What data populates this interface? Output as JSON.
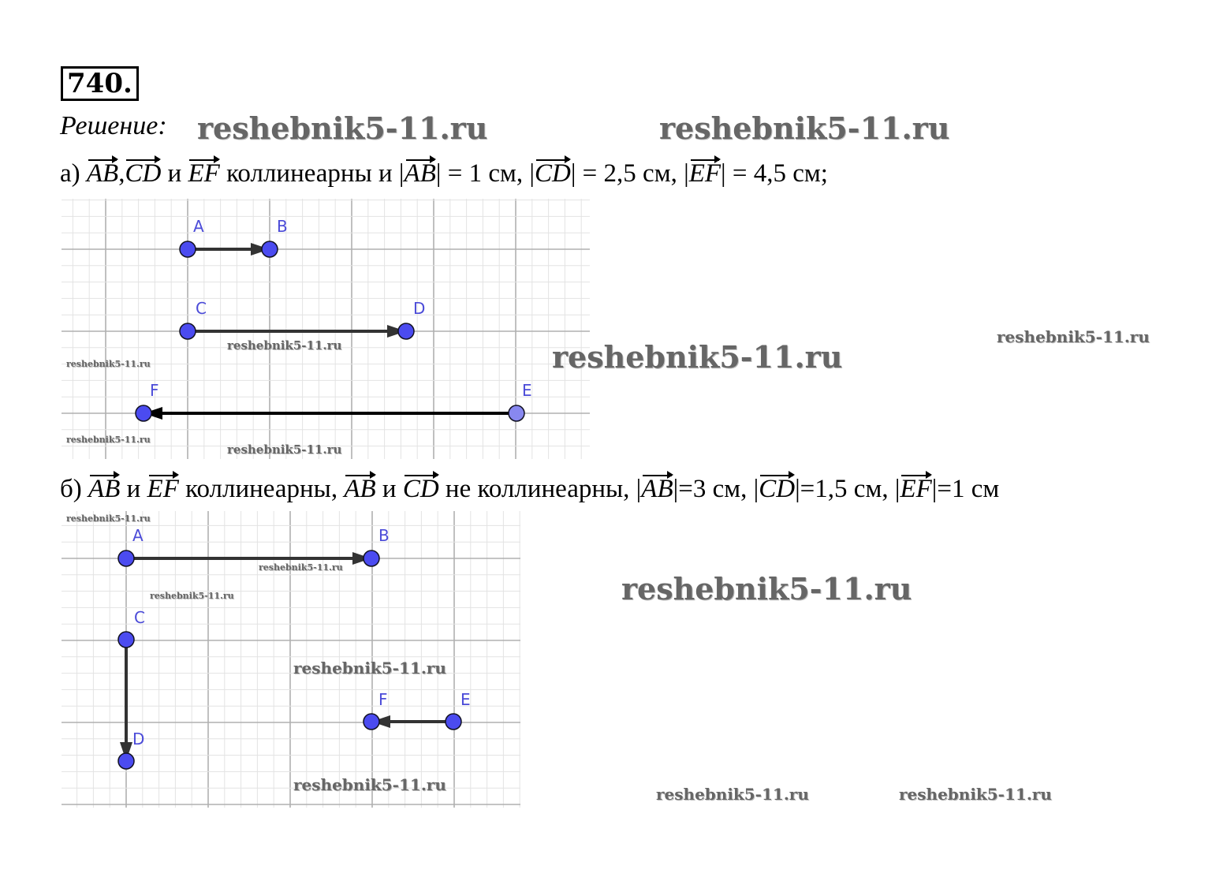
{
  "problem_number": "740.",
  "solution_label": "Решение:",
  "part_a": {
    "prefix": "а)",
    "v1": "AB",
    "sep1": ",",
    "v2": "CD",
    "and": "и",
    "v3": "EF",
    "text1": "коллинеарны и |",
    "v4": "AB",
    "text2": "| = 1 см, |",
    "v5": "CD",
    "text3": "| = 2,5 см, |",
    "v6": "EF",
    "text4": "| = 4,5 см;",
    "points": [
      "A",
      "B",
      "C",
      "D",
      "E",
      "F"
    ]
  },
  "part_b": {
    "prefix": "б)",
    "v1": "AB",
    "and1": "и",
    "v2": "EF",
    "text1": "коллинеарны,",
    "v3": "AB",
    "and2": "и",
    "v4": "CD",
    "text2": "не коллинеарны, |",
    "v5": "AB",
    "text3": "|=3 см, |",
    "v6": "CD",
    "text4": "|=1,5 см, |",
    "v7": "EF",
    "text5": "|=1 см",
    "points": [
      "A",
      "B",
      "C",
      "D",
      "E",
      "F"
    ]
  },
  "watermark": "reshebnik5-11.ru",
  "colors": {
    "point": "#4b4bf0",
    "label": "#4b4bd8",
    "grid_major": "#b0b0b0",
    "grid_minor": "#e3e3e3"
  }
}
